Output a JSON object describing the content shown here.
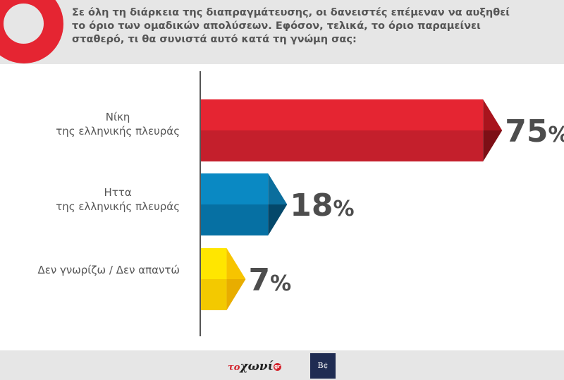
{
  "question": {
    "line1": "Σε όλη τη διάρκεια της διαπραγμάτευσης, οι δανειστές επέμεναν να αυξηθεί",
    "line2": "το όριο των ομαδικών απολύσεων. Εφόσον, τελικά, το όριο παραμείνει",
    "line3": "σταθερό, τι θα συνιστά αυτό κατά τη γνώμη σας:"
  },
  "chart_data": {
    "type": "bar",
    "orientation": "horizontal",
    "categories": [
      "Νίκη της ελληνικής πλευράς",
      "Ηττα της ελληνικής πλευράς",
      "Δεν γνωρίζω / Δεν απαντώ"
    ],
    "category_lines": [
      [
        "Νίκη",
        "της ελληνικής πλευράς"
      ],
      [
        "Ηττα",
        "της ελληνικής πλευράς"
      ],
      [
        "Δεν γνωρίζω / Δεν απαντώ"
      ]
    ],
    "values": [
      75,
      18,
      7
    ],
    "value_labels": [
      "75",
      "18",
      "7"
    ],
    "unit": "%",
    "colors": [
      {
        "top": "#e52532",
        "bottom": "#c41f2c",
        "tip_top": "#a8141d",
        "tip_bottom": "#7d0f16"
      },
      {
        "top": "#0a89c3",
        "bottom": "#0670a3",
        "tip_top": "#0b6e9d",
        "tip_bottom": "#04486a"
      },
      {
        "top": "#ffe600",
        "bottom": "#f3c900",
        "tip_top": "#f7c400",
        "tip_bottom": "#e8ad00"
      }
    ],
    "xlim": [
      0,
      100
    ],
    "grid": false,
    "legend": "none"
  },
  "footer": {
    "logo1_prefix": "το",
    "logo1_main": "χωνί",
    "logo1_badge": "gr",
    "logo2": "Β¢"
  }
}
